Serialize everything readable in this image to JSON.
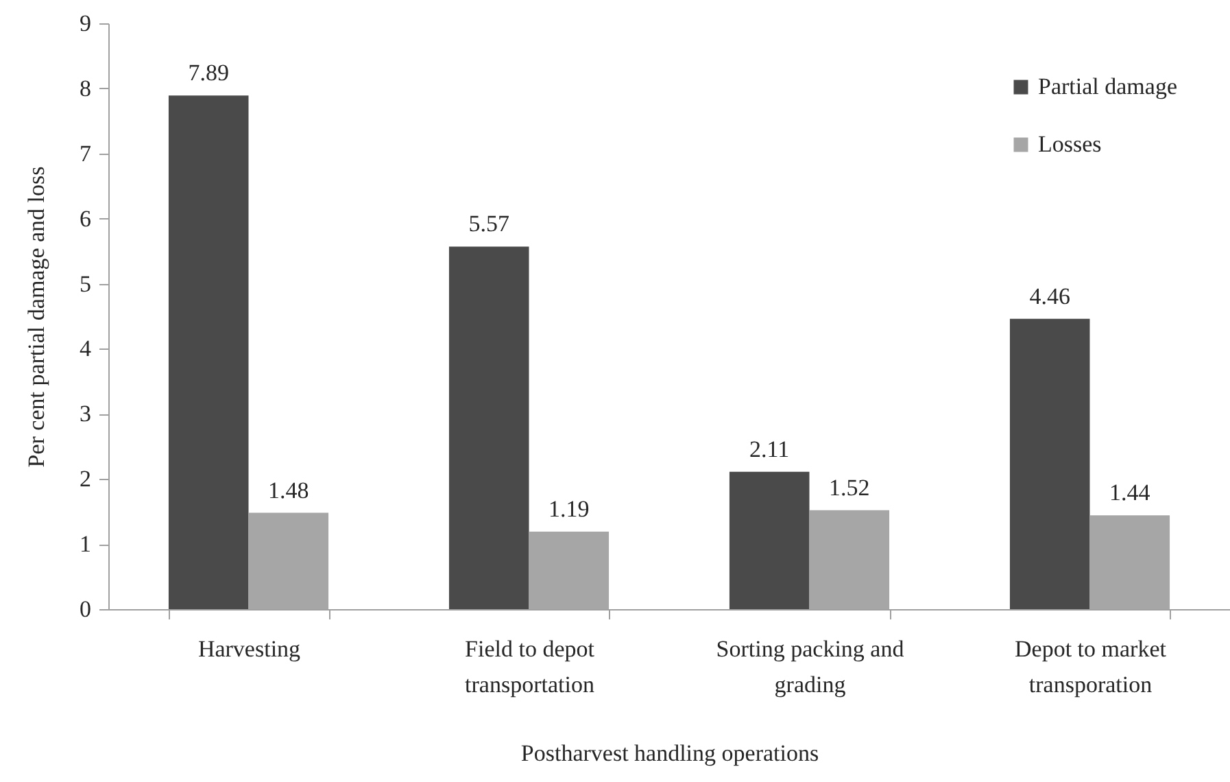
{
  "chart_data": {
    "type": "bar",
    "xlabel": "Postharvest handling operations",
    "ylabel": "Per cent partial damage and loss",
    "categories": [
      "Harvesting",
      "Field to depot transportation",
      "Sorting packing and grading",
      "Depot to market transporation"
    ],
    "series": [
      {
        "name": "Partial damage",
        "color": "#4a4a4a",
        "values": [
          7.89,
          5.57,
          2.11,
          4.46
        ]
      },
      {
        "name": "Losses",
        "color": "#a6a6a6",
        "values": [
          1.48,
          1.19,
          1.52,
          1.44
        ]
      }
    ],
    "ylim": [
      0,
      9
    ],
    "yticks": [
      0,
      1,
      2,
      3,
      4,
      5,
      6,
      7,
      8,
      9
    ],
    "legend": "top right",
    "data_labels": true
  }
}
